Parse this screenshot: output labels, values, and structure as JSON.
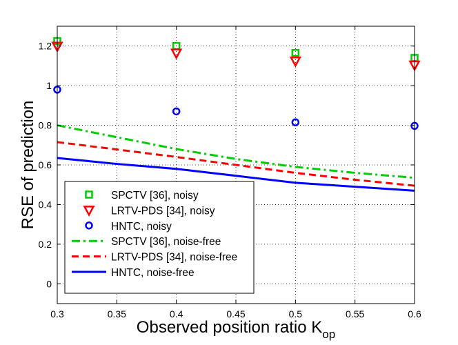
{
  "chart_data": {
    "type": "line",
    "title": "",
    "xlabel": "Observed position ratio K",
    "xlabel_sub": "op",
    "ylabel": "RSE of prediction",
    "xlim": [
      0.3,
      0.6
    ],
    "ylim": [
      -0.1,
      1.3
    ],
    "xticks": [
      "0.3",
      "0.35",
      "0.4",
      "0.45",
      "0.5",
      "0.55",
      "0.6"
    ],
    "yticks": [
      "0",
      "0.2",
      "0.4",
      "0.6",
      "0.8",
      "1",
      "1.2"
    ],
    "grid": true,
    "legend_position": "bottom-left",
    "series": [
      {
        "name": "SPCTV [36], noisy",
        "kind": "marker",
        "marker": "square",
        "color": "#00cc00",
        "x": [
          0.3,
          0.4,
          0.5,
          0.6
        ],
        "y": [
          1.225,
          1.2,
          1.165,
          1.14
        ]
      },
      {
        "name": "LRTV-PDS [34], noisy",
        "kind": "marker",
        "marker": "triangle-down",
        "color": "#ff0000",
        "x": [
          0.3,
          0.4,
          0.5,
          0.6
        ],
        "y": [
          1.2,
          1.165,
          1.125,
          1.105
        ]
      },
      {
        "name": "HNTC, noisy",
        "kind": "marker",
        "marker": "circle",
        "color": "#0000ff",
        "x": [
          0.3,
          0.4,
          0.5,
          0.6
        ],
        "y": [
          0.98,
          0.87,
          0.815,
          0.797
        ]
      },
      {
        "name": "SPCTV [36], noise-free",
        "kind": "line",
        "style": "dashdot",
        "color": "#00cc00",
        "x": [
          0.3,
          0.35,
          0.4,
          0.45,
          0.5,
          0.55,
          0.6
        ],
        "y": [
          0.8,
          0.74,
          0.68,
          0.63,
          0.59,
          0.56,
          0.535
        ]
      },
      {
        "name": "LRTV-PDS [34], noise-free",
        "kind": "line",
        "style": "dashed",
        "color": "#ff0000",
        "x": [
          0.3,
          0.35,
          0.4,
          0.45,
          0.5,
          0.55,
          0.6
        ],
        "y": [
          0.715,
          0.678,
          0.64,
          0.6,
          0.56,
          0.525,
          0.495
        ]
      },
      {
        "name": "HNTC, noise-free",
        "kind": "line",
        "style": "solid",
        "color": "#0000ff",
        "x": [
          0.3,
          0.35,
          0.4,
          0.45,
          0.5,
          0.55,
          0.6
        ],
        "y": [
          0.635,
          0.605,
          0.58,
          0.545,
          0.51,
          0.49,
          0.47
        ]
      }
    ]
  }
}
